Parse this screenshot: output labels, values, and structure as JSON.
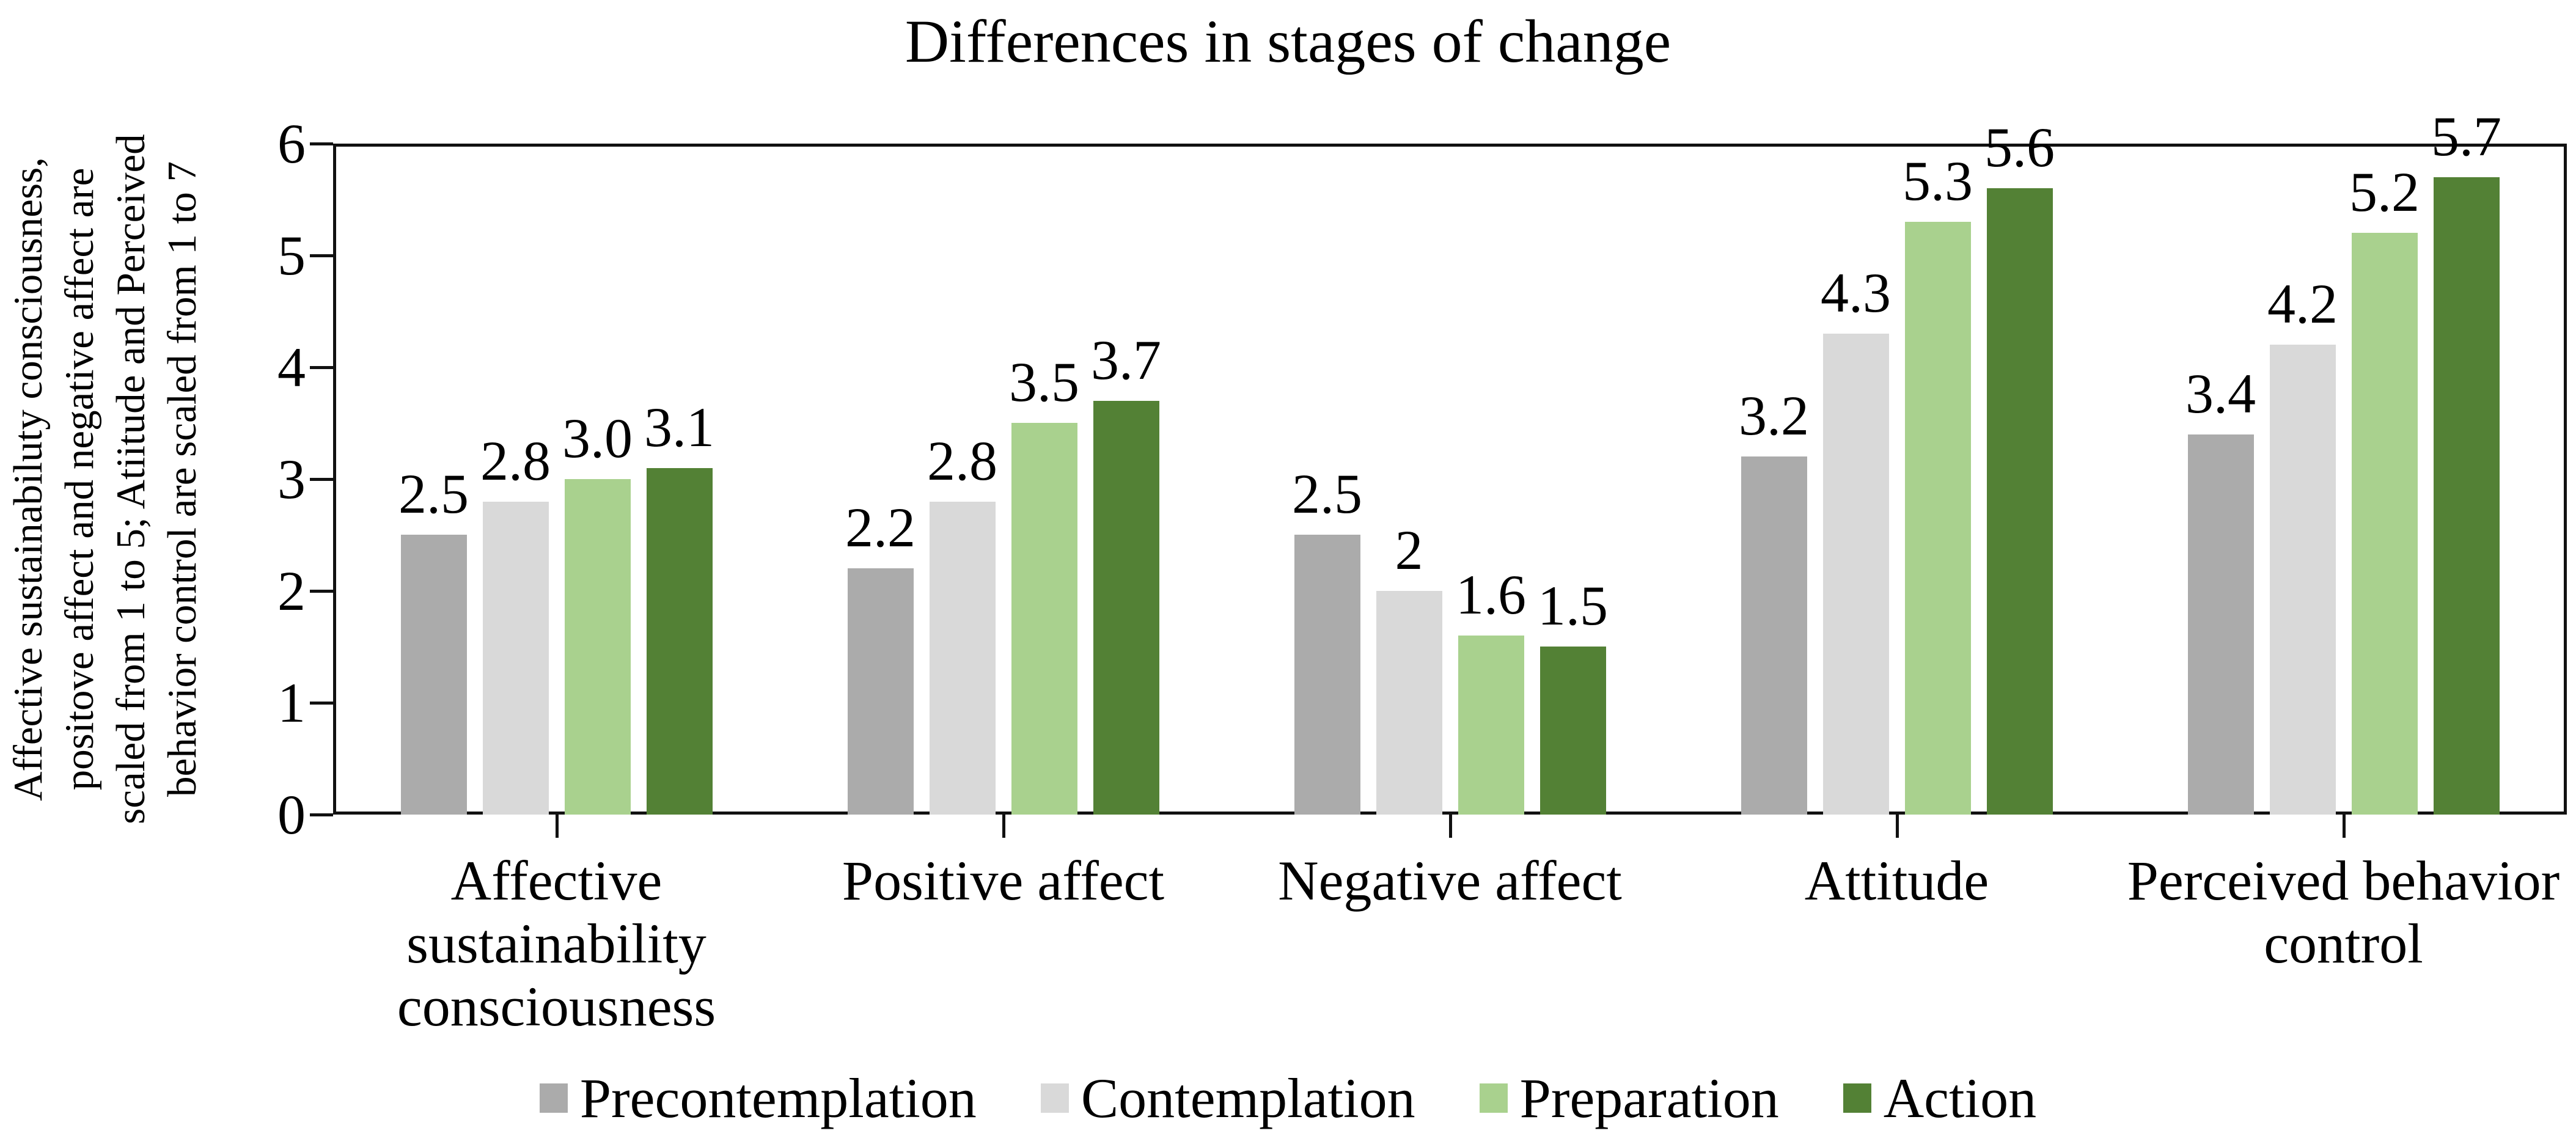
{
  "chart_data": {
    "type": "bar",
    "title": "Differences in stages of change",
    "xlabel": "",
    "ylabel_lines": [
      "Affective sustainabiluty consciousness,",
      "positove affect and negative affect are",
      "scaled from 1 to 5; Atiitude and Perceived",
      "behavior control are scaled from 1 to 7"
    ],
    "categories": [
      "Affective sustainability consciousness",
      "Positive affect",
      "Negative affect",
      "Attitude",
      "Perceived behavior control"
    ],
    "series": [
      {
        "name": "Precontemplation",
        "color": "#ABABAB",
        "values": [
          2.5,
          2.2,
          2.5,
          3.2,
          3.4
        ],
        "labels": [
          "2.5",
          "2.2",
          "2.5",
          "3.2",
          "3.4"
        ]
      },
      {
        "name": "Contemplation",
        "color": "#D9D9D9",
        "values": [
          2.8,
          2.8,
          2.0,
          4.3,
          4.2
        ],
        "labels": [
          "2.8",
          "2.8",
          "2",
          "4.3",
          "4.2"
        ]
      },
      {
        "name": "Preparation",
        "color": "#A9D18E",
        "values": [
          3.0,
          3.5,
          1.6,
          5.3,
          5.2
        ],
        "labels": [
          "3.0",
          "3.5",
          "1.6",
          "5.3",
          "5.2"
        ]
      },
      {
        "name": "Action",
        "color": "#538135",
        "values": [
          3.1,
          3.7,
          1.5,
          5.6,
          5.7
        ],
        "labels": [
          "3.1",
          "3.7",
          "1.5",
          "5.6",
          "5.7"
        ]
      }
    ],
    "y_axis": {
      "min": 0,
      "max": 6,
      "ticks": [
        0,
        1,
        2,
        3,
        4,
        5,
        6
      ]
    },
    "grid": false,
    "legend_position": "bottom",
    "axis_color": "#111111",
    "background_color": "#ffffff"
  }
}
